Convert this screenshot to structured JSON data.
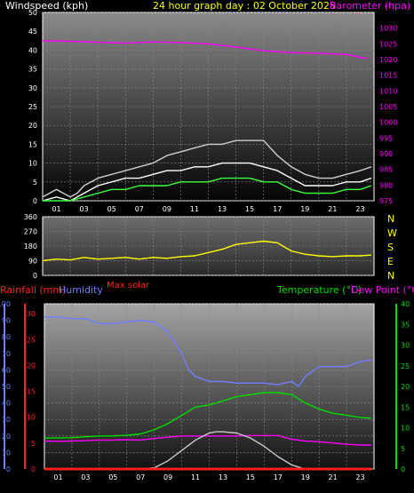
{
  "colors": {
    "background": "#000000",
    "wind_speed": "#ffffff",
    "wind_gust": "#cfcfcf",
    "wind_avg": "#3cff3c",
    "barometer": "#ff00ff",
    "direction": "#ffff00",
    "rainfall": "#ff2020",
    "humidity": "#6f7fff",
    "temperature": "#00dd00",
    "dew_point": "#ff00ff",
    "solar": "#c8c8c8",
    "axis_white": "#ffffff"
  },
  "header": {
    "left_label": "Windspeed (kph)",
    "title": "24 hour graph day : 02 October 2025",
    "right_label": "Barometer (hpa)"
  },
  "compass": [
    "N",
    "W",
    "S",
    "E",
    "N"
  ],
  "bottom_labels": {
    "rainfall": "Rainfall (mm)",
    "humidity": "Humidity",
    "max_solar": "Max solar",
    "temperature": "Temperature (°C)",
    "dew_point": "Dew Point (°C)"
  },
  "chart_data": [
    {
      "type": "line",
      "xlabel": "",
      "x_ticks": [
        "01",
        "03",
        "05",
        "07",
        "09",
        "11",
        "13",
        "15",
        "17",
        "19",
        "21",
        "23"
      ],
      "ylim": [
        0,
        50
      ],
      "y_ticks": [
        "0",
        "5",
        "10",
        "15",
        "20",
        "25",
        "30",
        "35",
        "40",
        "45",
        "50"
      ],
      "y2lim": [
        975,
        1035
      ],
      "y2_ticks": [
        "975",
        "980",
        "985",
        "990",
        "995",
        "1000",
        "1005",
        "1010",
        "1015",
        "1020",
        "1025",
        "1030"
      ],
      "series": [
        {
          "name": "Barometer (hpa)",
          "axis": "right",
          "x": [
            0,
            2,
            4,
            6,
            8,
            10,
            12,
            14,
            16,
            18,
            20,
            22,
            23.5
          ],
          "values": [
            1026,
            1025.8,
            1025.5,
            1025.2,
            1025.6,
            1025.4,
            1025,
            1024,
            1022.8,
            1022.2,
            1022,
            1021.6,
            1020.3
          ]
        },
        {
          "name": "Windspeed (kph)",
          "axis": "left",
          "x": [
            0,
            1,
            2,
            2.5,
            3,
            4,
            5,
            6,
            7,
            8,
            9,
            10,
            11,
            12,
            13,
            14,
            15,
            16,
            17,
            18,
            19,
            20,
            21,
            22,
            23,
            23.8
          ],
          "values": [
            1,
            3,
            1,
            2,
            4,
            6,
            7,
            8,
            9,
            10,
            12,
            13,
            14,
            15,
            15,
            16,
            16,
            16,
            12,
            9,
            7,
            6,
            6,
            7,
            8,
            9
          ]
        },
        {
          "x": [
            0,
            1,
            2,
            3,
            4,
            5,
            6,
            7,
            8,
            9,
            10,
            11,
            12,
            13,
            14,
            15,
            16,
            17,
            18,
            19,
            20,
            21,
            22,
            23,
            23.8
          ],
          "values": [
            0,
            1,
            0,
            2,
            4,
            5,
            6,
            6,
            7,
            8,
            8,
            9,
            9,
            10,
            10,
            10,
            9,
            8,
            6,
            4,
            4,
            4,
            5,
            5,
            6
          ]
        },
        {
          "x": [
            0,
            2,
            3,
            4,
            5,
            6,
            7,
            8,
            9,
            10,
            11,
            12,
            13,
            14,
            15,
            16,
            17,
            18,
            19,
            20,
            21,
            22,
            23,
            23.8
          ],
          "values": [
            0,
            0,
            1,
            2,
            3,
            3,
            4,
            4,
            4,
            5,
            5,
            5,
            6,
            6,
            6,
            5,
            5,
            3,
            2,
            2,
            2,
            3,
            3,
            4
          ]
        }
      ]
    },
    {
      "type": "line",
      "x_ticks": [],
      "ylim": [
        0,
        360
      ],
      "y_ticks": [
        "0",
        "90",
        "180",
        "270",
        "360"
      ],
      "series": [
        {
          "x": [
            0,
            1,
            2,
            3,
            4,
            5,
            6,
            7,
            8,
            9,
            10,
            11,
            12,
            13,
            14,
            15,
            16,
            17,
            18,
            19,
            20,
            21,
            22,
            23,
            23.8
          ],
          "values": [
            90,
            100,
            95,
            110,
            100,
            105,
            110,
            100,
            110,
            105,
            115,
            120,
            140,
            160,
            190,
            200,
            210,
            200,
            150,
            130,
            120,
            115,
            120,
            120,
            125
          ]
        }
      ]
    },
    {
      "type": "line",
      "x_ticks": [
        "01",
        "03",
        "05",
        "07",
        "09",
        "11",
        "13",
        "15",
        "17",
        "19",
        "21",
        "23"
      ],
      "ylim": [
        0,
        100
      ],
      "y_ticks": [
        "0",
        "10",
        "20",
        "30",
        "40",
        "50",
        "60",
        "70",
        "80",
        "90",
        "100"
      ],
      "y_rain_ticks": [
        "0",
        "5",
        "10",
        "15",
        "20",
        "25",
        "30"
      ],
      "y2lim": [
        0,
        40
      ],
      "y2_ticks": [
        "0",
        "5",
        "10",
        "15",
        "20",
        "25",
        "30",
        "35",
        "40"
      ],
      "series": [
        {
          "name": "Humidity",
          "axis": "left",
          "x": [
            0,
            1,
            2,
            3,
            4,
            5,
            6,
            7,
            8,
            9,
            10,
            10.5,
            11,
            12,
            13,
            14,
            15,
            16,
            17,
            18,
            18.5,
            19,
            20,
            21,
            22,
            23,
            23.8
          ],
          "values": [
            92,
            92,
            91,
            91,
            88,
            88,
            89,
            90,
            89,
            83,
            70,
            60,
            56,
            53,
            53,
            52,
            52,
            52,
            51,
            53,
            50,
            56,
            62,
            62,
            62,
            65,
            66
          ]
        },
        {
          "name": "Temperature (°C)",
          "axis": "right",
          "x": [
            0,
            1,
            2,
            3,
            4,
            5,
            6,
            7,
            8,
            9,
            10,
            11,
            12,
            13,
            14,
            15,
            16,
            17,
            18,
            19,
            20,
            21,
            22,
            23,
            23.8
          ],
          "values": [
            7.5,
            7.5,
            7.6,
            7.8,
            8,
            8,
            8.2,
            8.5,
            9.5,
            11,
            13,
            15,
            15.5,
            16.5,
            17.5,
            18,
            18.5,
            18.5,
            18,
            16,
            14.5,
            13.5,
            13,
            12.5,
            12.3
          ]
        },
        {
          "name": "Dew Point (°C)",
          "axis": "right",
          "x": [
            0,
            1,
            2,
            3,
            4,
            5,
            6,
            7,
            8,
            9,
            10,
            11,
            12,
            13,
            14,
            15,
            16,
            17,
            18,
            19,
            20,
            21,
            22,
            23,
            23.8
          ],
          "values": [
            6.8,
            6.7,
            6.8,
            6.9,
            7,
            7,
            7.1,
            7,
            7.4,
            7.7,
            8,
            8,
            8,
            8,
            8,
            8.1,
            8.1,
            8.1,
            7.2,
            6.8,
            6.6,
            6.3,
            6,
            5.8,
            5.8
          ]
        },
        {
          "name": "Max solar",
          "axis": "right",
          "x": [
            7,
            8,
            9,
            10,
            11,
            12,
            12.5,
            13,
            14,
            15,
            16,
            17,
            18,
            19
          ],
          "values": [
            0,
            0.3,
            2,
            4.5,
            7,
            8.7,
            9,
            9,
            8.7,
            7.5,
            5.5,
            3,
            1,
            0
          ]
        },
        {
          "name": "Rainfall (mm)",
          "axis": "rain",
          "x": [
            0,
            23.8
          ],
          "values": [
            0,
            0
          ]
        }
      ]
    }
  ]
}
